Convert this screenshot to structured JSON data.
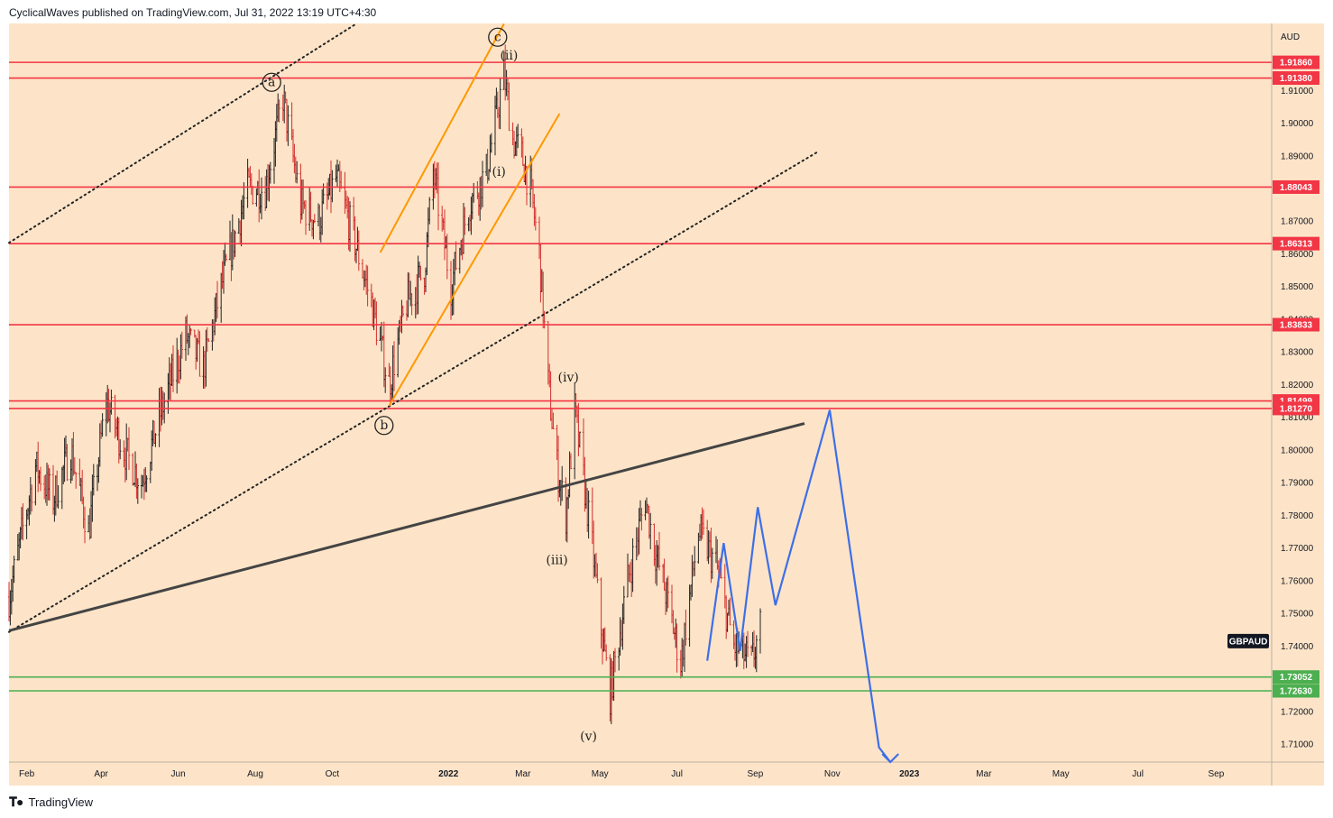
{
  "header": {
    "publisher_text": "CyclicalWaves published on TradingView.com, Jul 31, 2022 13:19 UTC+4:30"
  },
  "footer": {
    "brand": "TradingView",
    "logo_icon": "tradingview-logo-icon"
  },
  "chart_data": {
    "type": "candlestick",
    "symbol": "GBPAUD",
    "currency": "AUD",
    "y_range": [
      1.7045,
      1.9305
    ],
    "x_range": [
      "2021-01-18",
      "2023-10-15"
    ],
    "y_ticks": [
      1.71,
      1.72,
      1.73,
      1.74,
      1.75,
      1.76,
      1.77,
      1.78,
      1.79,
      1.8,
      1.81,
      1.82,
      1.83,
      1.84,
      1.85,
      1.86,
      1.87,
      1.88,
      1.89,
      1.9,
      1.91
    ],
    "y_tick_labels": [
      "1.71000",
      "1.72000",
      "1.73000",
      "1.74000",
      "1.75000",
      "1.76000",
      "1.77000",
      "1.78000",
      "1.79000",
      "1.80000",
      "1.81000",
      "1.82000",
      "1.83000",
      "1.84000",
      "1.85000",
      "1.86000",
      "1.87000",
      "1.88000",
      "1.89000",
      "1.90000",
      "1.91000"
    ],
    "x_ticks": [
      {
        "label": "Feb",
        "date": "2021-02-01",
        "bold": false
      },
      {
        "label": "Apr",
        "date": "2021-04-01",
        "bold": false
      },
      {
        "label": "Jun",
        "date": "2021-06-01",
        "bold": false
      },
      {
        "label": "Aug",
        "date": "2021-08-01",
        "bold": false
      },
      {
        "label": "Oct",
        "date": "2021-10-01",
        "bold": false
      },
      {
        "label": "2022",
        "date": "2022-01-01",
        "bold": true
      },
      {
        "label": "Mar",
        "date": "2022-03-01",
        "bold": false
      },
      {
        "label": "May",
        "date": "2022-05-01",
        "bold": false
      },
      {
        "label": "Jul",
        "date": "2022-07-01",
        "bold": false
      },
      {
        "label": "Sep",
        "date": "2022-09-01",
        "bold": false
      },
      {
        "label": "Nov",
        "date": "2022-11-01",
        "bold": false
      },
      {
        "label": "2023",
        "date": "2023-01-01",
        "bold": true
      },
      {
        "label": "Mar",
        "date": "2023-03-01",
        "bold": false
      },
      {
        "label": "May",
        "date": "2023-05-01",
        "bold": false
      },
      {
        "label": "Jul",
        "date": "2023-07-01",
        "bold": false
      },
      {
        "label": "Sep",
        "date": "2023-09-01",
        "bold": false
      }
    ],
    "price_path": [
      [
        "2021-01-18",
        1.755
      ],
      [
        "2021-02-08",
        1.795
      ],
      [
        "2021-02-22",
        1.785
      ],
      [
        "2021-03-08",
        1.8
      ],
      [
        "2021-03-22",
        1.775
      ],
      [
        "2021-04-05",
        1.815
      ],
      [
        "2021-04-19",
        1.8
      ],
      [
        "2021-05-03",
        1.79
      ],
      [
        "2021-05-17",
        1.81
      ],
      [
        "2021-06-07",
        1.835
      ],
      [
        "2021-06-21",
        1.825
      ],
      [
        "2021-07-05",
        1.85
      ],
      [
        "2021-07-26",
        1.88
      ],
      [
        "2021-08-09",
        1.88
      ],
      [
        "2021-08-23",
        1.908
      ],
      [
        "2021-09-06",
        1.875
      ],
      [
        "2021-09-20",
        1.87
      ],
      [
        "2021-10-04",
        1.883
      ],
      [
        "2021-10-18",
        1.865
      ],
      [
        "2021-11-01",
        1.845
      ],
      [
        "2021-11-15",
        1.82
      ],
      [
        "2021-11-29",
        1.845
      ],
      [
        "2021-12-13",
        1.855
      ],
      [
        "2021-12-20",
        1.885
      ],
      [
        "2022-01-03",
        1.85
      ],
      [
        "2022-01-17",
        1.875
      ],
      [
        "2022-01-31",
        1.885
      ],
      [
        "2022-02-07",
        1.9
      ],
      [
        "2022-02-14",
        1.915
      ],
      [
        "2022-02-21",
        1.895
      ],
      [
        "2022-02-28",
        1.89
      ],
      [
        "2022-03-07",
        1.88
      ],
      [
        "2022-03-14",
        1.86
      ],
      [
        "2022-03-21",
        1.82
      ],
      [
        "2022-03-28",
        1.795
      ],
      [
        "2022-04-04",
        1.78
      ],
      [
        "2022-04-11",
        1.812
      ],
      [
        "2022-04-25",
        1.77
      ],
      [
        "2022-05-02",
        1.745
      ],
      [
        "2022-05-09",
        1.725
      ],
      [
        "2022-05-23",
        1.76
      ],
      [
        "2022-06-06",
        1.785
      ],
      [
        "2022-06-13",
        1.77
      ],
      [
        "2022-06-20",
        1.76
      ],
      [
        "2022-07-04",
        1.735
      ],
      [
        "2022-07-18",
        1.775
      ],
      [
        "2022-08-01",
        1.765
      ],
      [
        "2022-08-15",
        1.74
      ],
      [
        "2022-08-29",
        1.735
      ],
      [
        "2022-09-05",
        1.745
      ]
    ],
    "horizontal_levels": [
      {
        "value": 1.9186,
        "label": "1.91860",
        "color": "#f23645"
      },
      {
        "value": 1.9138,
        "label": "1.91380",
        "color": "#f23645"
      },
      {
        "value": 1.88043,
        "label": "1.88043",
        "color": "#f23645"
      },
      {
        "value": 1.86313,
        "label": "1.86313",
        "color": "#f23645"
      },
      {
        "value": 1.83833,
        "label": "1.83833",
        "color": "#f23645"
      },
      {
        "value": 1.81499,
        "label": "1.81499",
        "color": "#f23645"
      },
      {
        "value": 1.8127,
        "label": "1.81270",
        "color": "#f23645"
      },
      {
        "value": 1.73052,
        "label": "1.73052",
        "color": "#4caf50"
      },
      {
        "value": 1.7263,
        "label": "1.72630",
        "color": "#4caf50"
      }
    ],
    "trendlines": [
      {
        "id": "upper-dotted",
        "style": "dotted",
        "color": "#222222",
        "from": [
          "2021-01-18",
          1.8634
        ],
        "to": [
          "2021-10-20",
          1.9304
        ]
      },
      {
        "id": "lower-dotted",
        "style": "dotted",
        "color": "#222222",
        "from": [
          "2021-01-18",
          1.7443
        ],
        "to": [
          "2022-10-20",
          1.8911
        ]
      },
      {
        "id": "black-trendline",
        "style": "solid",
        "color": "#444444",
        "from": [
          "2021-01-18",
          1.7447
        ],
        "to": [
          "2022-10-10",
          1.8081
        ]
      },
      {
        "id": "orange-upper",
        "style": "solid",
        "color": "#ff9800",
        "from": [
          "2021-11-08",
          1.8604
        ],
        "to": [
          "2022-02-14",
          1.9304
        ]
      },
      {
        "id": "orange-lower",
        "style": "solid",
        "color": "#ff9800",
        "from": [
          "2021-11-15",
          1.8135
        ],
        "to": [
          "2022-03-30",
          1.9029
        ]
      }
    ],
    "projection": {
      "color": "#3d6fe8",
      "points": [
        [
          "2022-07-25",
          1.7355
        ],
        [
          "2022-08-07",
          1.7715
        ],
        [
          "2022-08-20",
          1.7385
        ],
        [
          "2022-09-03",
          1.7825
        ],
        [
          "2022-09-17",
          1.7525
        ],
        [
          "2022-10-30",
          1.8122
        ],
        [
          "2022-12-08",
          1.709
        ],
        [
          "2022-12-17",
          1.7045
        ]
      ]
    },
    "wave_labels": [
      {
        "text": "c",
        "circled": true,
        "date": "2022-02-09",
        "value": 1.9263
      },
      {
        "text": "a",
        "circled": true,
        "date": "2021-08-14",
        "value": 1.9125
      },
      {
        "text": "b",
        "circled": true,
        "date": "2021-11-11",
        "value": 1.8075
      },
      {
        "text": "(ii)",
        "circled": false,
        "date": "2022-02-18",
        "value": 1.9208
      },
      {
        "text": "(i)",
        "circled": false,
        "date": "2022-02-10",
        "value": 1.8852
      },
      {
        "text": "(iv)",
        "circled": false,
        "date": "2022-04-06",
        "value": 1.8223
      },
      {
        "text": "(iii)",
        "circled": false,
        "date": "2022-03-28",
        "value": 1.7665
      },
      {
        "text": "(v)",
        "circled": false,
        "date": "2022-04-22",
        "value": 1.7125
      }
    ],
    "current_price_badge": {
      "text": "GBPAUD",
      "value": 1.7415
    }
  }
}
